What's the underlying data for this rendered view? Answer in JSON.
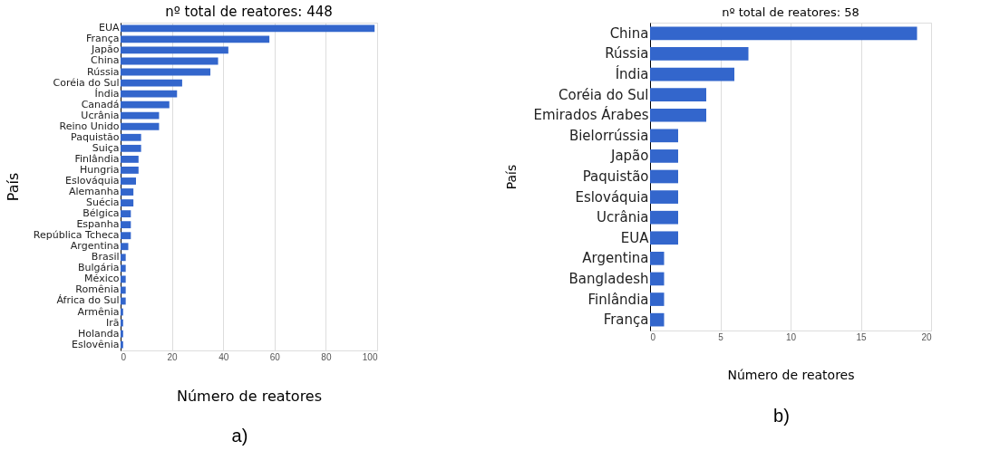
{
  "chart_data": [
    {
      "type": "bar",
      "orientation": "horizontal",
      "title": "nº total de reatores: 448",
      "xlabel": "Número de reatores",
      "ylabel": "País",
      "categories": [
        "EUA",
        "França",
        "Japão",
        "China",
        "Rússia",
        "Coréia do Sul",
        "Índia",
        "Canadá",
        "Ucrânia",
        "Reino Unido",
        "Paquistão",
        "Suiça",
        "Finlândia",
        "Hungria",
        "Eslováquia",
        "Alemanha",
        "Suécia",
        "Bélgica",
        "Espanha",
        "República Tcheca",
        "Argentina",
        "Brasil",
        "Bulgária",
        "México",
        "Romênia",
        "África do Sul",
        "Armênia",
        "Irã",
        "Holanda",
        "Eslovênia"
      ],
      "values": [
        99,
        58,
        42,
        38,
        35,
        24,
        22,
        19,
        15,
        15,
        8,
        8,
        7,
        7,
        6,
        5,
        5,
        4,
        4,
        4,
        3,
        2,
        2,
        2,
        2,
        2,
        1,
        1,
        1,
        1
      ],
      "color": "#3366cc",
      "xlim": [
        0,
        100
      ],
      "xticks": [
        0,
        20,
        40,
        60,
        80,
        100
      ],
      "grid": "x",
      "annotations": [
        "a)"
      ]
    },
    {
      "type": "bar",
      "orientation": "horizontal",
      "title": "nº total de reatores: 58",
      "xlabel": "Número de reatores",
      "ylabel": "País",
      "categories": [
        "China",
        "Rússia",
        "Índia",
        "Coréia do Sul",
        "Emirados Árabes",
        "Bielorrússia",
        "Japão",
        "Paquistão",
        "Eslováquia",
        "Ucrânia",
        "EUA",
        "Argentina",
        "Bangladesh",
        "Finlândia",
        "França"
      ],
      "values": [
        19,
        7,
        6,
        4,
        4,
        2,
        2,
        2,
        2,
        2,
        2,
        1,
        1,
        1,
        1
      ],
      "color": "#3366cc",
      "xlim": [
        0,
        20
      ],
      "xticks": [
        0,
        5,
        10,
        15,
        20
      ],
      "grid": "x",
      "annotations": [
        "b)"
      ]
    }
  ]
}
